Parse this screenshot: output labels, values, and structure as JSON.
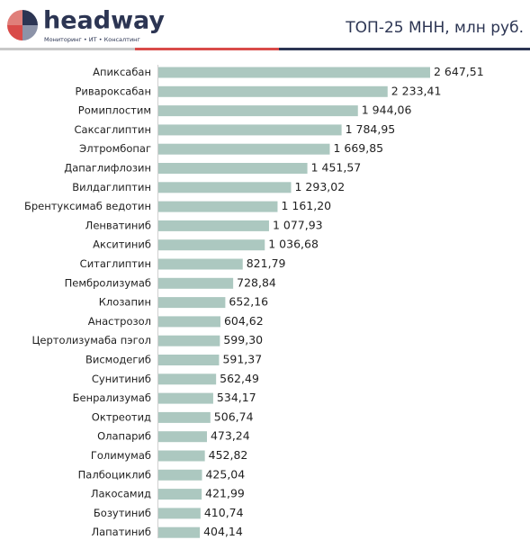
{
  "header": {
    "logo": "headway",
    "tagline": "Мониторинг • ИТ • Консалтинг"
  },
  "chart_data": {
    "type": "bar",
    "orientation": "horizontal",
    "title": "ТОП-25 МНН, млн руб.",
    "color": "#acc8c0",
    "categories": [
      "Апиксабан",
      "Ривароксабан",
      "Ромиплостим",
      "Саксаглиптин",
      "Элтромбопаг",
      "Дапаглифлозин",
      "Вилдаглиптин",
      "Брентуксимаб ведотин",
      "Ленватиниб",
      "Акситиниб",
      "Ситаглиптин",
      "Пембролизумаб",
      "Клозапин",
      "Анастрозол",
      "Цертолизумаба пэгол",
      "Висмодегиб",
      "Сунитиниб",
      "Бенрализумаб",
      "Октреотид",
      "Олапариб",
      "Голимумаб",
      "Палбоциклиб",
      "Лакосамид",
      "Бозутиниб",
      "Лапатиниб"
    ],
    "values": [
      2647.51,
      2233.41,
      1944.06,
      1784.95,
      1669.85,
      1451.57,
      1293.02,
      1161.2,
      1077.93,
      1036.68,
      821.79,
      728.84,
      652.16,
      604.62,
      599.3,
      591.37,
      562.49,
      534.17,
      506.74,
      473.24,
      452.82,
      425.04,
      421.99,
      410.74,
      404.14
    ],
    "value_labels": [
      "2 647,51",
      "2 233,41",
      "1 944,06",
      "1 784,95",
      "1 669,85",
      "1 451,57",
      "1 293,02",
      "1 161,20",
      "1 077,93",
      "1 036,68",
      "821,79",
      "728,84",
      "652,16",
      "604,62",
      "599,30",
      "591,37",
      "562,49",
      "534,17",
      "506,74",
      "473,24",
      "452,82",
      "425,04",
      "421,99",
      "410,74",
      "404,14"
    ]
  }
}
